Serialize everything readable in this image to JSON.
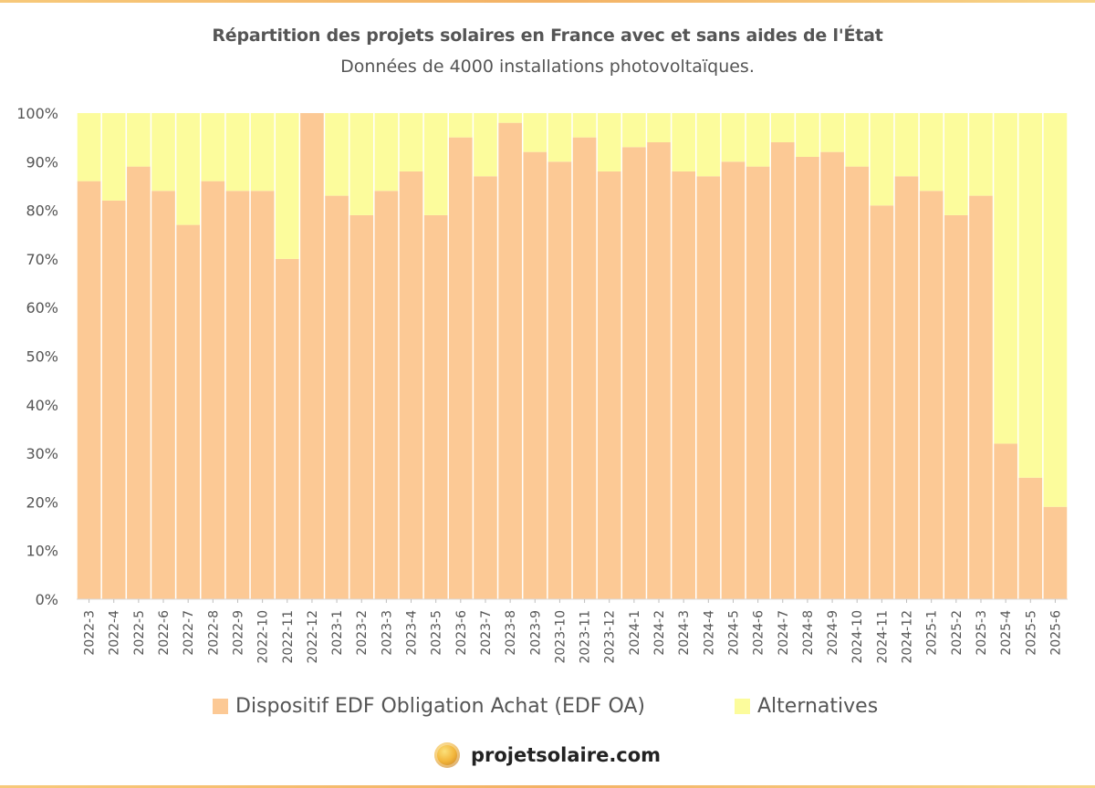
{
  "title": "Répartition des projets solaires en France avec et sans aides de l'État",
  "subtitle": "Données de 4000 installations photovoltaïques.",
  "colors": {
    "edf_oa": "#FCC995",
    "alternatives": "#FCFC9C"
  },
  "chart_data": {
    "type": "bar",
    "stacked": true,
    "title": "Répartition des projets solaires en France avec et sans aides de l'État",
    "subtitle": "Données de 4000 installations photovoltaïques.",
    "categories": [
      "2022-3",
      "2022-4",
      "2022-5",
      "2022-6",
      "2022-7",
      "2022-8",
      "2022-9",
      "2022-10",
      "2022-11",
      "2022-12",
      "2023-1",
      "2023-2",
      "2023-3",
      "2023-4",
      "2023-5",
      "2023-6",
      "2023-7",
      "2023-8",
      "2023-9",
      "2023-10",
      "2023-11",
      "2023-12",
      "2024-1",
      "2024-2",
      "2024-3",
      "2024-4",
      "2024-5",
      "2024-6",
      "2024-7",
      "2024-8",
      "2024-9",
      "2024-10",
      "2024-11",
      "2024-12",
      "2025-1",
      "2025-2",
      "2025-3",
      "2025-4",
      "2025-5",
      "2025-6"
    ],
    "series": [
      {
        "name": "Dispositif EDF Obligation Achat (EDF OA)",
        "values": [
          86,
          82,
          89,
          84,
          77,
          86,
          84,
          84,
          70,
          100,
          83,
          79,
          84,
          88,
          79,
          95,
          87,
          98,
          92,
          90,
          95,
          88,
          93,
          94,
          88,
          87,
          90,
          89,
          94,
          91,
          92,
          89,
          81,
          87,
          84,
          79,
          83,
          32,
          25,
          19
        ]
      },
      {
        "name": "Alternatives",
        "values": [
          14,
          18,
          11,
          16,
          23,
          14,
          16,
          16,
          30,
          0,
          17,
          21,
          16,
          12,
          21,
          5,
          13,
          2,
          8,
          10,
          5,
          12,
          7,
          6,
          12,
          13,
          10,
          11,
          6,
          9,
          8,
          11,
          19,
          13,
          16,
          21,
          17,
          68,
          75,
          81
        ]
      }
    ],
    "yticks": [
      "0%",
      "10%",
      "20%",
      "30%",
      "40%",
      "50%",
      "60%",
      "70%",
      "80%",
      "90%",
      "100%"
    ],
    "ylim": [
      0,
      100
    ],
    "grid": false,
    "legend": "bottom"
  },
  "brand": {
    "name": "projetsolaire.com"
  }
}
